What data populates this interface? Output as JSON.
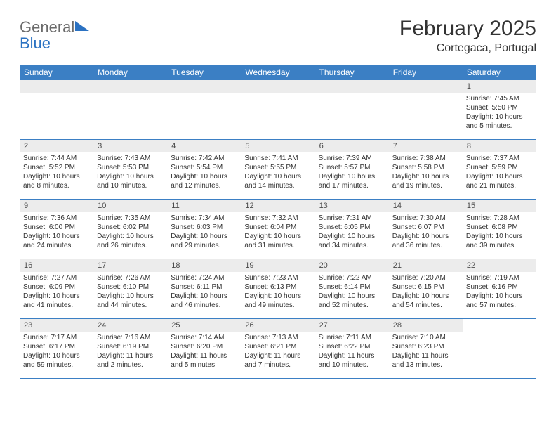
{
  "brand": {
    "word1": "General",
    "word2": "Blue"
  },
  "title": "February 2025",
  "location": "Cortegaca, Portugal",
  "colors": {
    "header_bar": "#3b7fc4",
    "brand_gray": "#6b6b6b",
    "brand_blue": "#2b72c2",
    "text": "#333333",
    "strip_bg": "#ececec",
    "empty_bg": "#f0f0f0"
  },
  "weekdays": [
    "Sunday",
    "Monday",
    "Tuesday",
    "Wednesday",
    "Thursday",
    "Friday",
    "Saturday"
  ],
  "weeks": [
    [
      null,
      null,
      null,
      null,
      null,
      null,
      {
        "n": "1",
        "sunrise": "Sunrise: 7:45 AM",
        "sunset": "Sunset: 5:50 PM",
        "d1": "Daylight: 10 hours",
        "d2": "and 5 minutes."
      }
    ],
    [
      {
        "n": "2",
        "sunrise": "Sunrise: 7:44 AM",
        "sunset": "Sunset: 5:52 PM",
        "d1": "Daylight: 10 hours",
        "d2": "and 8 minutes."
      },
      {
        "n": "3",
        "sunrise": "Sunrise: 7:43 AM",
        "sunset": "Sunset: 5:53 PM",
        "d1": "Daylight: 10 hours",
        "d2": "and 10 minutes."
      },
      {
        "n": "4",
        "sunrise": "Sunrise: 7:42 AM",
        "sunset": "Sunset: 5:54 PM",
        "d1": "Daylight: 10 hours",
        "d2": "and 12 minutes."
      },
      {
        "n": "5",
        "sunrise": "Sunrise: 7:41 AM",
        "sunset": "Sunset: 5:55 PM",
        "d1": "Daylight: 10 hours",
        "d2": "and 14 minutes."
      },
      {
        "n": "6",
        "sunrise": "Sunrise: 7:39 AM",
        "sunset": "Sunset: 5:57 PM",
        "d1": "Daylight: 10 hours",
        "d2": "and 17 minutes."
      },
      {
        "n": "7",
        "sunrise": "Sunrise: 7:38 AM",
        "sunset": "Sunset: 5:58 PM",
        "d1": "Daylight: 10 hours",
        "d2": "and 19 minutes."
      },
      {
        "n": "8",
        "sunrise": "Sunrise: 7:37 AM",
        "sunset": "Sunset: 5:59 PM",
        "d1": "Daylight: 10 hours",
        "d2": "and 21 minutes."
      }
    ],
    [
      {
        "n": "9",
        "sunrise": "Sunrise: 7:36 AM",
        "sunset": "Sunset: 6:00 PM",
        "d1": "Daylight: 10 hours",
        "d2": "and 24 minutes."
      },
      {
        "n": "10",
        "sunrise": "Sunrise: 7:35 AM",
        "sunset": "Sunset: 6:02 PM",
        "d1": "Daylight: 10 hours",
        "d2": "and 26 minutes."
      },
      {
        "n": "11",
        "sunrise": "Sunrise: 7:34 AM",
        "sunset": "Sunset: 6:03 PM",
        "d1": "Daylight: 10 hours",
        "d2": "and 29 minutes."
      },
      {
        "n": "12",
        "sunrise": "Sunrise: 7:32 AM",
        "sunset": "Sunset: 6:04 PM",
        "d1": "Daylight: 10 hours",
        "d2": "and 31 minutes."
      },
      {
        "n": "13",
        "sunrise": "Sunrise: 7:31 AM",
        "sunset": "Sunset: 6:05 PM",
        "d1": "Daylight: 10 hours",
        "d2": "and 34 minutes."
      },
      {
        "n": "14",
        "sunrise": "Sunrise: 7:30 AM",
        "sunset": "Sunset: 6:07 PM",
        "d1": "Daylight: 10 hours",
        "d2": "and 36 minutes."
      },
      {
        "n": "15",
        "sunrise": "Sunrise: 7:28 AM",
        "sunset": "Sunset: 6:08 PM",
        "d1": "Daylight: 10 hours",
        "d2": "and 39 minutes."
      }
    ],
    [
      {
        "n": "16",
        "sunrise": "Sunrise: 7:27 AM",
        "sunset": "Sunset: 6:09 PM",
        "d1": "Daylight: 10 hours",
        "d2": "and 41 minutes."
      },
      {
        "n": "17",
        "sunrise": "Sunrise: 7:26 AM",
        "sunset": "Sunset: 6:10 PM",
        "d1": "Daylight: 10 hours",
        "d2": "and 44 minutes."
      },
      {
        "n": "18",
        "sunrise": "Sunrise: 7:24 AM",
        "sunset": "Sunset: 6:11 PM",
        "d1": "Daylight: 10 hours",
        "d2": "and 46 minutes."
      },
      {
        "n": "19",
        "sunrise": "Sunrise: 7:23 AM",
        "sunset": "Sunset: 6:13 PM",
        "d1": "Daylight: 10 hours",
        "d2": "and 49 minutes."
      },
      {
        "n": "20",
        "sunrise": "Sunrise: 7:22 AM",
        "sunset": "Sunset: 6:14 PM",
        "d1": "Daylight: 10 hours",
        "d2": "and 52 minutes."
      },
      {
        "n": "21",
        "sunrise": "Sunrise: 7:20 AM",
        "sunset": "Sunset: 6:15 PM",
        "d1": "Daylight: 10 hours",
        "d2": "and 54 minutes."
      },
      {
        "n": "22",
        "sunrise": "Sunrise: 7:19 AM",
        "sunset": "Sunset: 6:16 PM",
        "d1": "Daylight: 10 hours",
        "d2": "and 57 minutes."
      }
    ],
    [
      {
        "n": "23",
        "sunrise": "Sunrise: 7:17 AM",
        "sunset": "Sunset: 6:17 PM",
        "d1": "Daylight: 10 hours",
        "d2": "and 59 minutes."
      },
      {
        "n": "24",
        "sunrise": "Sunrise: 7:16 AM",
        "sunset": "Sunset: 6:19 PM",
        "d1": "Daylight: 11 hours",
        "d2": "and 2 minutes."
      },
      {
        "n": "25",
        "sunrise": "Sunrise: 7:14 AM",
        "sunset": "Sunset: 6:20 PM",
        "d1": "Daylight: 11 hours",
        "d2": "and 5 minutes."
      },
      {
        "n": "26",
        "sunrise": "Sunrise: 7:13 AM",
        "sunset": "Sunset: 6:21 PM",
        "d1": "Daylight: 11 hours",
        "d2": "and 7 minutes."
      },
      {
        "n": "27",
        "sunrise": "Sunrise: 7:11 AM",
        "sunset": "Sunset: 6:22 PM",
        "d1": "Daylight: 11 hours",
        "d2": "and 10 minutes."
      },
      {
        "n": "28",
        "sunrise": "Sunrise: 7:10 AM",
        "sunset": "Sunset: 6:23 PM",
        "d1": "Daylight: 11 hours",
        "d2": "and 13 minutes."
      },
      null
    ]
  ]
}
